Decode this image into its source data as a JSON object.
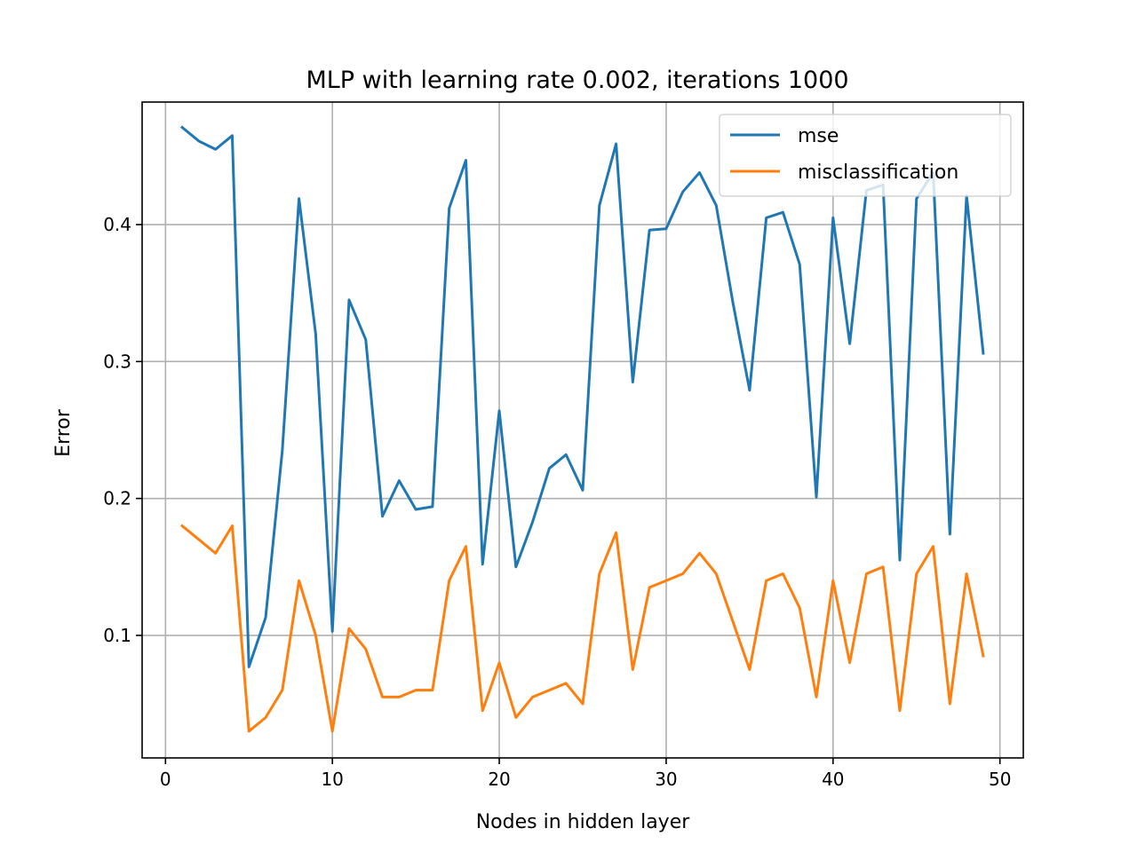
{
  "chart_data": {
    "type": "line",
    "title": "MLP with learning rate 0.002, iterations 1000",
    "xlabel": "Nodes in hidden layer",
    "ylabel": "Error",
    "xlim": [
      -1.4,
      51.4
    ],
    "ylim": [
      0.0105,
      0.4895
    ],
    "xticks": [
      0,
      10,
      20,
      30,
      40,
      50
    ],
    "yticks": [
      0.1,
      0.2,
      0.3,
      0.4
    ],
    "xtick_labels": [
      "0",
      "10",
      "20",
      "30",
      "40",
      "50"
    ],
    "ytick_labels": [
      "0.1",
      "0.2",
      "0.3",
      "0.4"
    ],
    "grid": true,
    "legend_position": "top-right",
    "x": [
      1,
      2,
      3,
      4,
      5,
      6,
      7,
      8,
      9,
      10,
      11,
      12,
      13,
      14,
      15,
      16,
      17,
      18,
      19,
      20,
      21,
      22,
      23,
      24,
      25,
      26,
      27,
      28,
      29,
      30,
      31,
      32,
      33,
      34,
      35,
      36,
      37,
      38,
      39,
      40,
      41,
      42,
      43,
      44,
      45,
      46,
      47,
      48,
      49
    ],
    "series": [
      {
        "name": "mse",
        "color": "#1f77b4",
        "values": [
          0.471,
          0.461,
          0.455,
          0.465,
          0.077,
          0.113,
          0.235,
          0.419,
          0.32,
          0.103,
          0.345,
          0.316,
          0.187,
          0.213,
          0.192,
          0.194,
          0.412,
          0.447,
          0.152,
          0.264,
          0.15,
          0.183,
          0.222,
          0.232,
          0.206,
          0.414,
          0.459,
          0.285,
          0.396,
          0.397,
          0.424,
          0.438,
          0.414,
          0.343,
          0.279,
          0.405,
          0.409,
          0.371,
          0.201,
          0.405,
          0.313,
          0.425,
          0.429,
          0.155,
          0.419,
          0.438,
          0.174,
          0.421,
          0.306
        ]
      },
      {
        "name": "misclassification",
        "color": "#ff7f0e",
        "values": [
          0.18,
          0.17,
          0.16,
          0.18,
          0.03,
          0.04,
          0.06,
          0.14,
          0.1,
          0.03,
          0.105,
          0.09,
          0.055,
          0.055,
          0.06,
          0.06,
          0.14,
          0.165,
          0.045,
          0.08,
          0.04,
          0.055,
          0.06,
          0.065,
          0.05,
          0.145,
          0.175,
          0.075,
          0.135,
          0.14,
          0.145,
          0.16,
          0.145,
          0.11,
          0.075,
          0.14,
          0.145,
          0.12,
          0.055,
          0.14,
          0.08,
          0.145,
          0.15,
          0.045,
          0.145,
          0.165,
          0.05,
          0.145,
          0.085
        ]
      }
    ]
  }
}
